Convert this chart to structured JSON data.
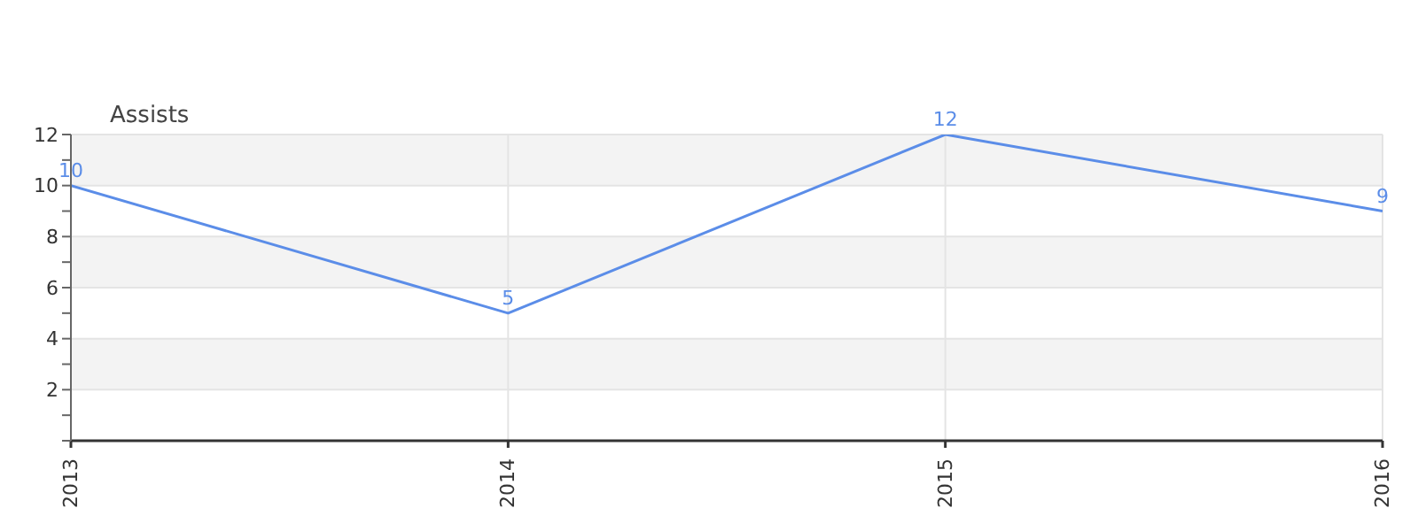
{
  "chart_data": {
    "type": "line",
    "ylabel": "Assists",
    "x": [
      2013,
      2014,
      2015,
      2016
    ],
    "series": [
      {
        "color": "#5b8de8",
        "values": [
          10,
          5,
          12,
          9
        ]
      }
    ],
    "xlim": [
      2013,
      2016
    ],
    "xticks": [
      2013,
      2014,
      2015,
      2016
    ],
    "ylim": [
      0,
      12
    ],
    "yticks": [
      {
        "value": 0,
        "label": null
      },
      {
        "value": 1,
        "label": null
      },
      2,
      {
        "value": 3,
        "label": null
      },
      4,
      {
        "value": 5,
        "label": null
      },
      6,
      {
        "value": 7,
        "label": null
      },
      8,
      {
        "value": 9,
        "label": null
      },
      10,
      {
        "value": 11,
        "label": null
      },
      12
    ],
    "grid": true,
    "data_labels": true,
    "marker": "none",
    "line_style": "solid"
  }
}
